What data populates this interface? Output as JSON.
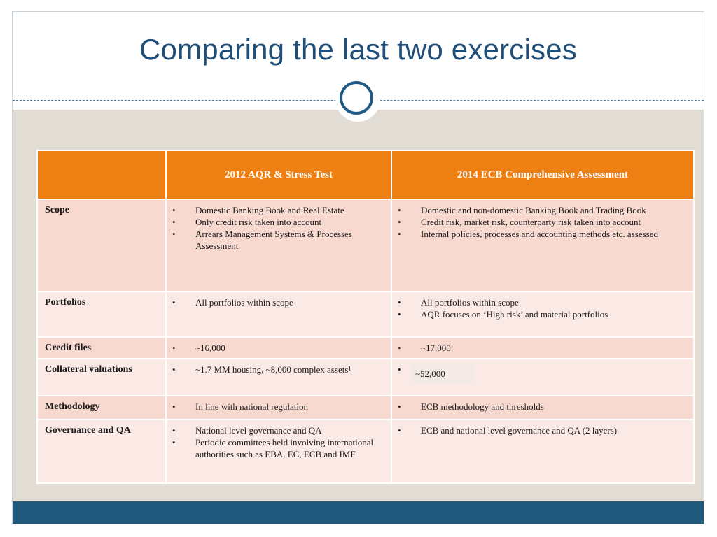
{
  "slide": {
    "title": "Comparing the last two exercises"
  },
  "table": {
    "headers": [
      "",
      "2012 AQR & Stress Test",
      "2014 ECB Comprehensive Assessment"
    ],
    "rows": [
      {
        "label": "Scope",
        "col2012": [
          "Domestic Banking Book and Real Estate",
          "Only credit risk taken into account",
          "Arrears Management Systems & Processes Assessment"
        ],
        "col2014": [
          "Domestic and non-domestic Banking Book and Trading Book",
          "Credit risk, market risk, counterparty risk taken into account",
          "Internal policies, processes and accounting methods etc. assessed"
        ]
      },
      {
        "label": "Portfolios",
        "col2012": [
          "All portfolios within scope"
        ],
        "col2014": [
          "All portfolios within scope",
          "AQR focuses on ‘High risk’ and material portfolios"
        ]
      },
      {
        "label": "Credit files",
        "col2012": [
          "~16,000"
        ],
        "col2014": [
          "~17,000"
        ]
      },
      {
        "label": "Collateral valuations",
        "col2012": [
          "~1.7 MM housing, ~8,000 complex assets¹"
        ],
        "col2014": [
          "~52,000"
        ]
      },
      {
        "label": "Methodology",
        "col2012": [
          "In line with national regulation"
        ],
        "col2014": [
          "ECB methodology and thresholds"
        ]
      },
      {
        "label": "Governance and QA",
        "col2012": [
          "National level governance and QA",
          "Periodic committees held involving international authorities such as EBA, EC, ECB and IMF"
        ],
        "col2014": [
          "ECB and national level governance and QA (2 layers)"
        ]
      }
    ]
  },
  "colors": {
    "header_orange": "#ee7f13",
    "title_blue": "#1f4e79",
    "footer_blue": "#1f5a7d",
    "row_dark": "#f7d9d0",
    "row_light": "#fbe9e5",
    "background_beige": "#e1ddd4"
  }
}
